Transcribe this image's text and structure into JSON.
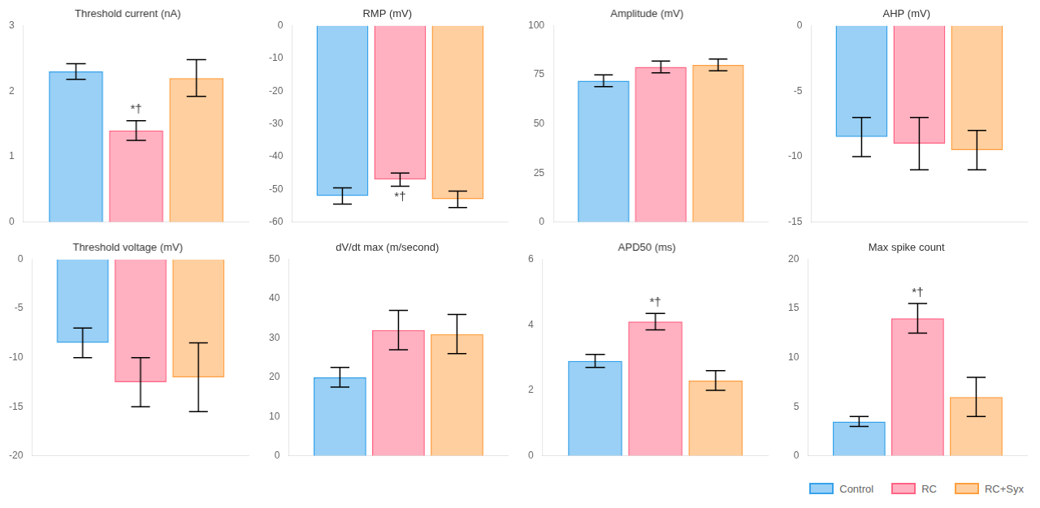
{
  "chart_data": [
    {
      "type": "bar",
      "title": "Threshold current (nA)",
      "categories": [
        null
      ],
      "series": [
        {
          "name": "Control",
          "values": [
            2.3
          ],
          "errors": [
            0.12
          ]
        },
        {
          "name": "RC",
          "values": [
            1.4
          ],
          "errors": [
            0.15
          ]
        },
        {
          "name": "RC+Syx",
          "values": [
            2.2
          ],
          "errors": [
            0.28
          ]
        }
      ],
      "ylim": [
        0,
        3
      ],
      "yticks": [
        0,
        1,
        2,
        3
      ],
      "grid": false,
      "tick_labels": "y",
      "annotations": [
        {
          "text": "*†",
          "series": "RC"
        }
      ]
    },
    {
      "type": "bar",
      "title": "RMP (mV)",
      "categories": [
        null
      ],
      "series": [
        {
          "name": "Control",
          "values": [
            -52
          ],
          "errors": [
            2.5
          ]
        },
        {
          "name": "RC",
          "values": [
            -47
          ],
          "errors": [
            2.0
          ]
        },
        {
          "name": "RC+Syx",
          "values": [
            -53
          ],
          "errors": [
            2.5
          ]
        }
      ],
      "ylim": [
        -60,
        0
      ],
      "yticks": [
        0,
        -10,
        -20,
        -30,
        -40,
        -50,
        -60
      ],
      "grid": false,
      "tick_labels": "y",
      "annotations": [
        {
          "text": "*†",
          "series": "RC"
        }
      ]
    },
    {
      "type": "bar",
      "title": "Amplitude (mV)",
      "categories": [
        null
      ],
      "series": [
        {
          "name": "Control",
          "values": [
            72
          ],
          "errors": [
            3
          ]
        },
        {
          "name": "RC",
          "values": [
            79
          ],
          "errors": [
            3
          ]
        },
        {
          "name": "RC+Syx",
          "values": [
            80
          ],
          "errors": [
            3
          ]
        }
      ],
      "ylim": [
        0,
        100
      ],
      "yticks": [
        0,
        25,
        50,
        75,
        100
      ],
      "grid": false,
      "tick_labels": "y"
    },
    {
      "type": "bar",
      "title": "AHP (mV)",
      "categories": [
        null
      ],
      "series": [
        {
          "name": "Control",
          "values": [
            -8.5
          ],
          "errors": [
            1.5
          ]
        },
        {
          "name": "RC",
          "values": [
            -9.0
          ],
          "errors": [
            2.0
          ]
        },
        {
          "name": "RC+Syx",
          "values": [
            -9.5
          ],
          "errors": [
            1.5
          ]
        }
      ],
      "ylim": [
        -15,
        0
      ],
      "yticks": [
        0,
        -5,
        -10,
        -15
      ],
      "grid": false,
      "tick_labels": "y"
    },
    {
      "type": "bar",
      "title": "Threshold voltage (mV)",
      "categories": [
        null
      ],
      "series": [
        {
          "name": "Control",
          "values": [
            -8.5
          ],
          "errors": [
            1.5
          ]
        },
        {
          "name": "RC",
          "values": [
            -12.5
          ],
          "errors": [
            2.5
          ]
        },
        {
          "name": "RC+Syx",
          "values": [
            -12.0
          ],
          "errors": [
            3.5
          ]
        }
      ],
      "ylim": [
        -20,
        0
      ],
      "yticks": [
        0,
        -5,
        -10,
        -15,
        -20
      ],
      "grid": false,
      "tick_labels": "y"
    },
    {
      "type": "bar",
      "title": "dV/dt max (m/second)",
      "categories": [
        null
      ],
      "series": [
        {
          "name": "Control",
          "values": [
            20
          ],
          "errors": [
            2.5
          ]
        },
        {
          "name": "RC",
          "values": [
            32
          ],
          "errors": [
            5
          ]
        },
        {
          "name": "RC+Syx",
          "values": [
            31
          ],
          "errors": [
            5
          ]
        }
      ],
      "ylim": [
        0,
        50
      ],
      "yticks": [
        0,
        10,
        20,
        30,
        40,
        50
      ],
      "grid": false,
      "tick_labels": "y"
    },
    {
      "type": "bar",
      "title": "APD50 (ms)",
      "categories": [
        null
      ],
      "series": [
        {
          "name": "Control",
          "values": [
            2.9
          ],
          "errors": [
            0.2
          ]
        },
        {
          "name": "RC",
          "values": [
            4.1
          ],
          "errors": [
            0.25
          ]
        },
        {
          "name": "RC+Syx",
          "values": [
            2.3
          ],
          "errors": [
            0.3
          ]
        }
      ],
      "ylim": [
        0,
        6
      ],
      "yticks": [
        0,
        2,
        4,
        6
      ],
      "grid": false,
      "tick_labels": "y",
      "annotations": [
        {
          "text": "*†",
          "series": "RC"
        }
      ]
    },
    {
      "type": "bar",
      "title": "Max spike count",
      "categories": [
        null
      ],
      "series": [
        {
          "name": "Control",
          "values": [
            3.5
          ],
          "errors": [
            0.5
          ]
        },
        {
          "name": "RC",
          "values": [
            14
          ],
          "errors": [
            1.5
          ]
        },
        {
          "name": "RC+Syx",
          "values": [
            6
          ],
          "errors": [
            2.0
          ]
        }
      ],
      "ylim": [
        0,
        20
      ],
      "yticks": [
        0,
        5,
        10,
        15,
        20
      ],
      "grid": false,
      "tick_labels": "y",
      "annotations": [
        {
          "text": "*†",
          "series": "RC"
        }
      ],
      "legend": "lower right"
    }
  ]
}
